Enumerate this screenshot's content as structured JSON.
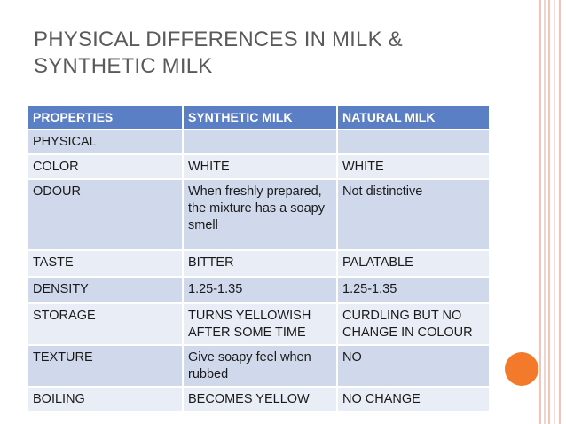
{
  "title": "PHYSICAL DIFFERENCES IN MILK & SYNTHETIC MILK",
  "colors": {
    "header_bg": "#5b7fc4",
    "row_dark": "#d0d9ec",
    "row_light": "#e8edf6",
    "accent_line": "#f0b8a8",
    "circle": "#f37a2a"
  },
  "table": {
    "headers": [
      "PROPERTIES",
      "SYNTHETIC MILK",
      "NATURAL MILK"
    ],
    "rows": [
      [
        "PHYSICAL",
        "",
        ""
      ],
      [
        "COLOR",
        "WHITE",
        "WHITE"
      ],
      [
        "ODOUR",
        "When freshly prepared, the mixture has a soapy smell",
        "Not distinctive"
      ],
      [
        "TASTE",
        "BITTER",
        "PALATABLE"
      ],
      [
        "DENSITY",
        "1.25-1.35",
        "1.25-1.35"
      ],
      [
        "STORAGE",
        "TURNS YELLOWISH AFTER SOME TIME",
        "CURDLING BUT NO CHANGE IN COLOUR"
      ],
      [
        "TEXTURE",
        "Give soapy feel when rubbed",
        "NO"
      ],
      [
        "BOILING",
        "BECOMES YELLOW",
        "NO CHANGE"
      ]
    ]
  }
}
